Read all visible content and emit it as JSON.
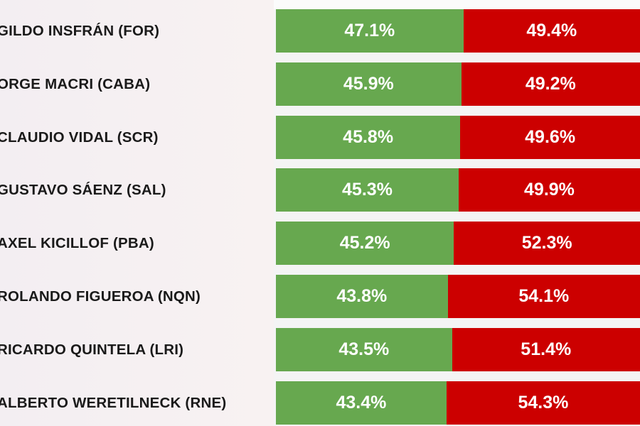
{
  "chart_data": {
    "type": "bar",
    "orientation": "horizontal-stacked",
    "categories": [
      "GILDO INSFRÁN (FOR)",
      "ORGE MACRI (CABA)",
      "CLAUDIO VIDAL (SCR)",
      "GUSTAVO SÁENZ (SAL)",
      "AXEL KICILLOF (PBA)",
      "ROLANDO FIGUEROA (NQN)",
      "RICARDO QUINTELA (LRI)",
      "ALBERTO WERETILNECK (RNE)"
    ],
    "series": [
      {
        "name": "green",
        "color": "#67a84f",
        "values": [
          47.1,
          45.9,
          45.8,
          45.3,
          45.2,
          43.8,
          43.5,
          43.4
        ],
        "labels": [
          "47.1%",
          "45.9%",
          "45.8%",
          "45.3%",
          "45.2%",
          "43.8%",
          "43.5%",
          "43.4%"
        ]
      },
      {
        "name": "red",
        "color": "#cc0000",
        "values": [
          49.4,
          49.2,
          49.6,
          49.9,
          52.3,
          54.1,
          51.4,
          54.3
        ],
        "labels": [
          "49.4%",
          "49.2%",
          "49.6%",
          "49.9%",
          "52.3%",
          "54.1%",
          "51.4%",
          "54.3%"
        ]
      }
    ],
    "title": "",
    "xlabel": "",
    "ylabel": "",
    "legend": "none",
    "grid": false
  }
}
